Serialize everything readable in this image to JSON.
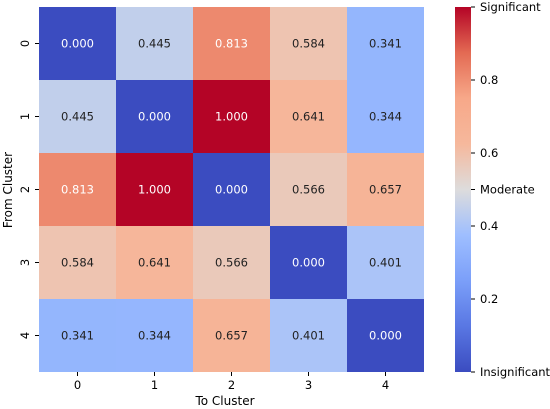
{
  "chart_data": {
    "type": "heatmap",
    "xlabel": "To Cluster",
    "ylabel": "From Cluster",
    "x_categories": [
      "0",
      "1",
      "2",
      "3",
      "4"
    ],
    "y_categories": [
      "0",
      "1",
      "2",
      "3",
      "4"
    ],
    "values": [
      [
        0.0,
        0.445,
        0.813,
        0.584,
        0.341
      ],
      [
        0.445,
        0.0,
        1.0,
        0.641,
        0.344
      ],
      [
        0.813,
        1.0,
        0.0,
        0.566,
        0.657
      ],
      [
        0.584,
        0.641,
        0.566,
        0.0,
        0.401
      ],
      [
        0.341,
        0.344,
        0.657,
        0.401,
        0.0
      ]
    ],
    "value_labels": [
      [
        "0.000",
        "0.445",
        "0.813",
        "0.584",
        "0.341"
      ],
      [
        "0.445",
        "0.000",
        "1.000",
        "0.641",
        "0.344"
      ],
      [
        "0.813",
        "1.000",
        "0.000",
        "0.566",
        "0.657"
      ],
      [
        "0.584",
        "0.641",
        "0.566",
        "0.000",
        "0.401"
      ],
      [
        "0.341",
        "0.344",
        "0.657",
        "0.401",
        "0.000"
      ]
    ],
    "colormap": "coolwarm",
    "color_range": [
      0,
      1
    ],
    "colorbar": {
      "ticks": [
        {
          "value": 1.0,
          "label": "Significant"
        },
        {
          "value": 0.8,
          "label": "0.8"
        },
        {
          "value": 0.6,
          "label": "0.6"
        },
        {
          "value": 0.5,
          "label": "Moderate"
        },
        {
          "value": 0.4,
          "label": "0.4"
        },
        {
          "value": 0.2,
          "label": "0.2"
        },
        {
          "value": 0.0,
          "label": "Insignificant"
        }
      ]
    },
    "grid": false,
    "legend": "colorbar-right"
  }
}
